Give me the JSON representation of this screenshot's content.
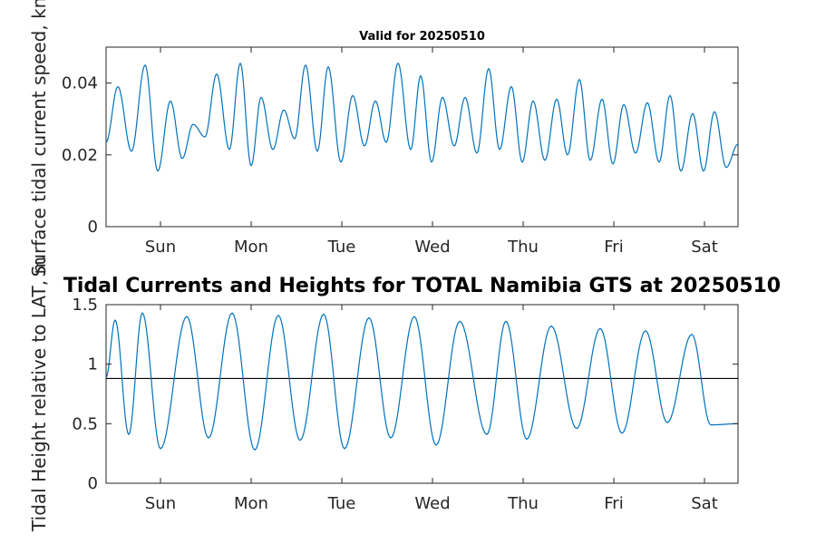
{
  "colors": {
    "series": "#0072BD",
    "axis": "#262626",
    "reference": "#000000",
    "background": "#ffffff"
  },
  "chart_data": [
    {
      "type": "line",
      "title": "Valid for 20250510",
      "xlabel": "",
      "ylabel": "Surface tidal current speed, kn",
      "x_unit": "days since first Sunday tick",
      "xlim": [
        -0.6,
        6.37
      ],
      "ylim": [
        0,
        0.05
      ],
      "xticks": [
        {
          "x": 0,
          "label": "Sun"
        },
        {
          "x": 1,
          "label": "Mon"
        },
        {
          "x": 2,
          "label": "Tue"
        },
        {
          "x": 3,
          "label": "Wed"
        },
        {
          "x": 4,
          "label": "Thu"
        },
        {
          "x": 5,
          "label": "Fri"
        },
        {
          "x": 6,
          "label": "Sat"
        }
      ],
      "yticks": [
        {
          "y": 0,
          "label": "0"
        },
        {
          "y": 0.02,
          "label": "0.02"
        },
        {
          "y": 0.04,
          "label": "0.04"
        }
      ],
      "grid": false,
      "series": [
        {
          "x": [
            -0.6,
            -0.47,
            -0.32,
            -0.17,
            -0.03,
            0.11,
            0.24,
            0.36,
            0.49,
            0.62,
            0.76,
            0.88,
            1.0,
            1.11,
            1.24,
            1.36,
            1.48,
            1.6,
            1.73,
            1.85,
            1.99,
            2.12,
            2.25,
            2.37,
            2.49,
            2.62,
            2.76,
            2.87,
            2.99,
            3.11,
            3.24,
            3.36,
            3.49,
            3.62,
            3.74,
            3.87,
            3.99,
            4.11,
            4.24,
            4.37,
            4.49,
            4.62,
            4.74,
            4.87,
            4.99,
            5.11,
            5.24,
            5.37,
            5.5,
            5.62,
            5.74,
            5.87,
            5.99,
            6.11,
            6.24,
            6.37
          ],
          "y": [
            0.0235,
            0.039,
            0.021,
            0.045,
            0.0155,
            0.035,
            0.019,
            0.0285,
            0.025,
            0.0425,
            0.0215,
            0.0455,
            0.017,
            0.036,
            0.0215,
            0.0325,
            0.0245,
            0.045,
            0.021,
            0.0445,
            0.018,
            0.0365,
            0.0225,
            0.035,
            0.0235,
            0.0455,
            0.0215,
            0.042,
            0.018,
            0.036,
            0.0225,
            0.036,
            0.0205,
            0.044,
            0.0215,
            0.039,
            0.018,
            0.035,
            0.0185,
            0.0355,
            0.02,
            0.041,
            0.0185,
            0.0355,
            0.0175,
            0.034,
            0.0205,
            0.0345,
            0.018,
            0.0365,
            0.0155,
            0.0315,
            0.0155,
            0.032,
            0.0165,
            0.023
          ]
        }
      ]
    },
    {
      "type": "line",
      "title": "Tidal Currents and Heights for TOTAL Namibia GTS at 20250510",
      "xlabel": "",
      "ylabel": "Tidal Height relative to LAT, m",
      "x_unit": "days since first Sunday tick",
      "xlim": [
        -0.6,
        6.37
      ],
      "ylim": [
        0,
        1.5
      ],
      "xticks": [
        {
          "x": 0,
          "label": "Sun"
        },
        {
          "x": 1,
          "label": "Mon"
        },
        {
          "x": 2,
          "label": "Tue"
        },
        {
          "x": 3,
          "label": "Wed"
        },
        {
          "x": 4,
          "label": "Thu"
        },
        {
          "x": 5,
          "label": "Fri"
        },
        {
          "x": 6,
          "label": "Sat"
        }
      ],
      "yticks": [
        {
          "y": 0,
          "label": "0"
        },
        {
          "y": 0.5,
          "label": "0.5"
        },
        {
          "y": 1,
          "label": "1"
        },
        {
          "y": 1.5,
          "label": "1.5"
        }
      ],
      "grid": false,
      "reference_line": 0.88,
      "series": [
        {
          "x": [
            -0.6,
            -0.5,
            -0.35,
            -0.2,
            0.0,
            0.29,
            0.53,
            0.79,
            1.04,
            1.3,
            1.54,
            1.8,
            2.03,
            2.3,
            2.54,
            2.8,
            3.04,
            3.3,
            3.6,
            3.81,
            4.04,
            4.31,
            4.59,
            4.85,
            5.09,
            5.35,
            5.59,
            5.86,
            6.07,
            6.37
          ],
          "y": [
            0.89,
            1.37,
            0.41,
            1.43,
            0.29,
            1.4,
            0.38,
            1.43,
            0.28,
            1.41,
            0.36,
            1.42,
            0.29,
            1.39,
            0.38,
            1.4,
            0.32,
            1.36,
            0.41,
            1.36,
            0.37,
            1.32,
            0.46,
            1.3,
            0.42,
            1.28,
            0.51,
            1.25,
            0.49,
            0.5
          ]
        }
      ]
    }
  ]
}
